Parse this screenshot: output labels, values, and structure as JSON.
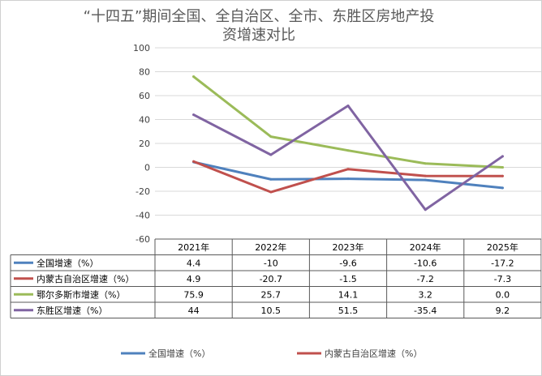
{
  "chart_data": {
    "type": "line",
    "title_line1": "“十四五”期间全国、全自治区、全市、东胜区房地产投",
    "title_line2": "资增速对比",
    "categories": [
      "2021年",
      "2022年",
      "2023年",
      "2024年",
      "2025年"
    ],
    "ylim": [
      -60,
      100
    ],
    "yticks": [
      "100",
      "80",
      "60",
      "40",
      "20",
      "0",
      "-20",
      "-40",
      "-60"
    ],
    "grid": true,
    "series": [
      {
        "name": "全国增速（%）",
        "color": "#4f81bd",
        "values": [
          4.4,
          -10,
          -9.6,
          -10.6,
          -17.2
        ],
        "labels": [
          "4.4",
          "-10",
          "-9.6",
          "-10.6",
          "-17.2"
        ]
      },
      {
        "name": "内蒙古自治区增速（%）",
        "color": "#c0504d",
        "values": [
          4.9,
          -20.7,
          -1.5,
          -7.2,
          -7.3
        ],
        "labels": [
          "4.9",
          "-20.7",
          "-1.5",
          "-7.2",
          "-7.3"
        ]
      },
      {
        "name": "鄂尔多斯市增速（%）",
        "color": "#9bbb59",
        "values": [
          75.9,
          25.7,
          14.1,
          3.2,
          0.0
        ],
        "labels": [
          "75.9",
          "25.7",
          "14.1",
          "3.2",
          "0.0"
        ]
      },
      {
        "name": "东胜区增速（%）",
        "color": "#8064a2",
        "values": [
          44,
          10.5,
          51.5,
          -35.4,
          9.2
        ],
        "labels": [
          "44",
          "10.5",
          "51.5",
          "-35.4",
          "9.2"
        ]
      }
    ],
    "legend": {
      "placement": "bottom",
      "items": [
        {
          "name": "全国增速（%）",
          "color": "#4f81bd"
        },
        {
          "name": "内蒙古自治区增速（%）",
          "color": "#c0504d"
        }
      ]
    }
  }
}
